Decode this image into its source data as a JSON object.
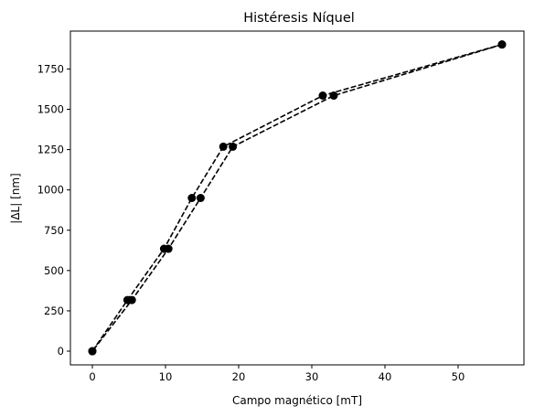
{
  "chart_data": {
    "type": "line",
    "title": "Histéresis Níquel",
    "xlabel": "Campo magnético [mT]",
    "ylabel": "|ΔL| [nm]",
    "xlim": [
      -3,
      59
    ],
    "ylim": [
      -85,
      1985
    ],
    "xticks": [
      0,
      10,
      20,
      30,
      40,
      50
    ],
    "yticks": [
      0,
      250,
      500,
      750,
      1000,
      1250,
      1500,
      1750
    ],
    "grid": false,
    "series": [
      {
        "line_style": "dashed",
        "color": "#000000",
        "marker": "circle",
        "x": [
          0,
          4.8,
          9.8,
          13.6,
          17.9,
          31.5,
          56.0
        ],
        "y": [
          0,
          317,
          635,
          950,
          1268,
          1585,
          1902
        ]
      },
      {
        "line_style": "dashed",
        "color": "#000000",
        "marker": "circle",
        "x": [
          56.0,
          33.0,
          19.2,
          14.8,
          10.4,
          5.4,
          0
        ],
        "y": [
          1902,
          1585,
          1268,
          950,
          635,
          317,
          0
        ]
      }
    ]
  }
}
